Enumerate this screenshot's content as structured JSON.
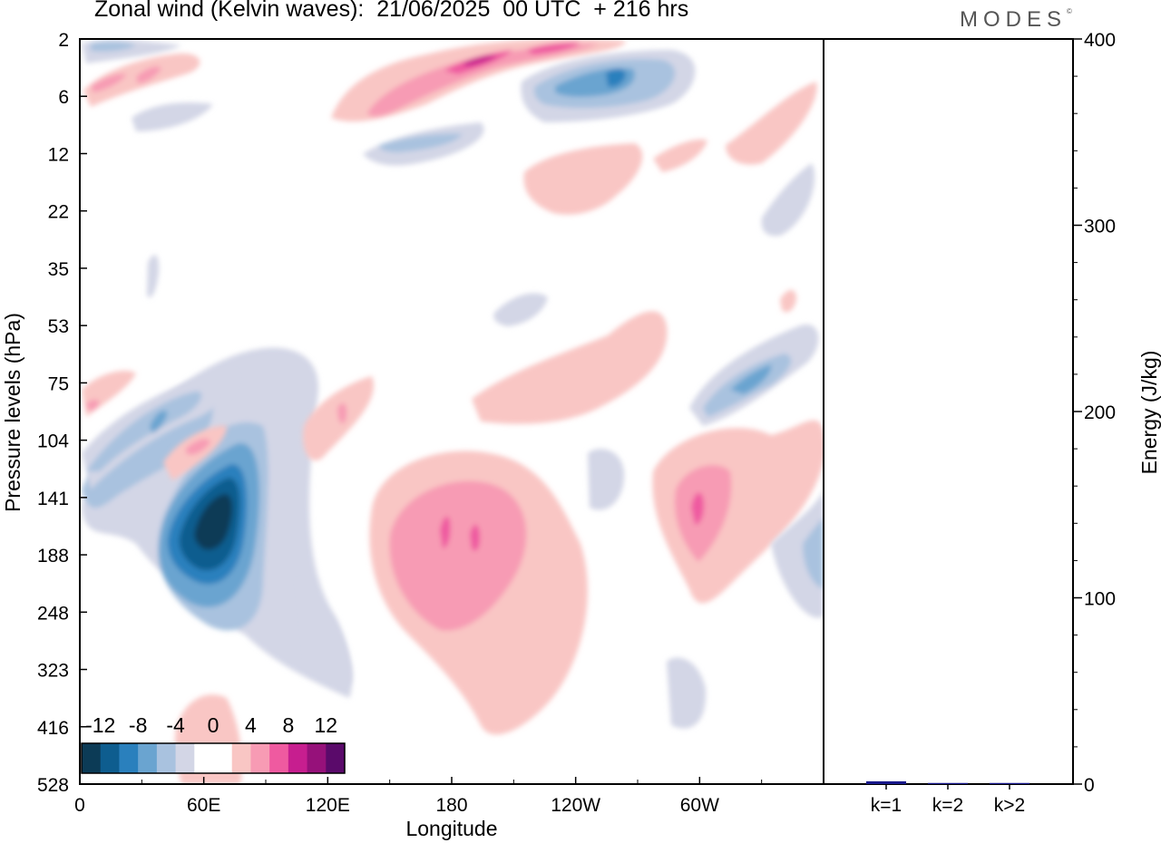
{
  "header": {
    "title": "Zonal wind (Kelvin waves):  21/06/2025  00 UTC  + 216 hrs",
    "brand": "MODES",
    "brand_mark": "©"
  },
  "chart_data": [
    {
      "type": "heatmap",
      "title": "Zonal wind (Kelvin waves):  21/06/2025  00 UTC  + 216 hrs",
      "xlabel": "Longitude",
      "ylabel": "Pressure levels (hPa)",
      "x_ticks": [
        "0",
        "60E",
        "120E",
        "180",
        "120W",
        "60W"
      ],
      "y_ticks": [
        "2",
        "6",
        "12",
        "22",
        "35",
        "53",
        "75",
        "104",
        "141",
        "188",
        "248",
        "323",
        "416",
        "528"
      ],
      "grid": false,
      "colorbar": {
        "labels": [
          "-12",
          "-8",
          "-4",
          "0",
          "4",
          "8",
          "12"
        ],
        "colors": [
          "#0c3b56",
          "#0e5d8f",
          "#2a80bd",
          "#6aa4d0",
          "#a9c2df",
          "#d3d6e6",
          "#ffffff",
          "#ffffff",
          "#f9c6c4",
          "#f79bb4",
          "#ef5aa0",
          "#c71e8f",
          "#96117a",
          "#5a0a6a"
        ],
        "placement": "bottom-left"
      },
      "features": [
        {
          "name": "negative anomaly",
          "lon": 68,
          "level": 150,
          "min": -14
        },
        {
          "name": "negative anomaly",
          "lon": 44,
          "level": 90,
          "min": -6
        },
        {
          "name": "negative anomaly",
          "lon": 330,
          "level": 80,
          "min": -8
        },
        {
          "name": "negative anomaly",
          "lon": 265,
          "level": 5,
          "min": -10
        },
        {
          "name": "positive anomaly",
          "lon": 185,
          "level": 155,
          "max": 8
        },
        {
          "name": "positive anomaly",
          "lon": 296,
          "level": 145,
          "max": 8
        },
        {
          "name": "positive anomaly",
          "lon": 195,
          "level": 3,
          "max": 10
        }
      ]
    },
    {
      "type": "bar",
      "categories": [
        "k=1",
        "k=2",
        "k>2"
      ],
      "values": [
        1.5,
        0.6,
        0.6
      ],
      "ylabel": "Energy (J/kg)",
      "ylim": [
        0,
        400
      ],
      "y_ticks": [
        "0",
        "100",
        "200",
        "300",
        "400"
      ],
      "bar_color": "#1a1a8c"
    }
  ]
}
